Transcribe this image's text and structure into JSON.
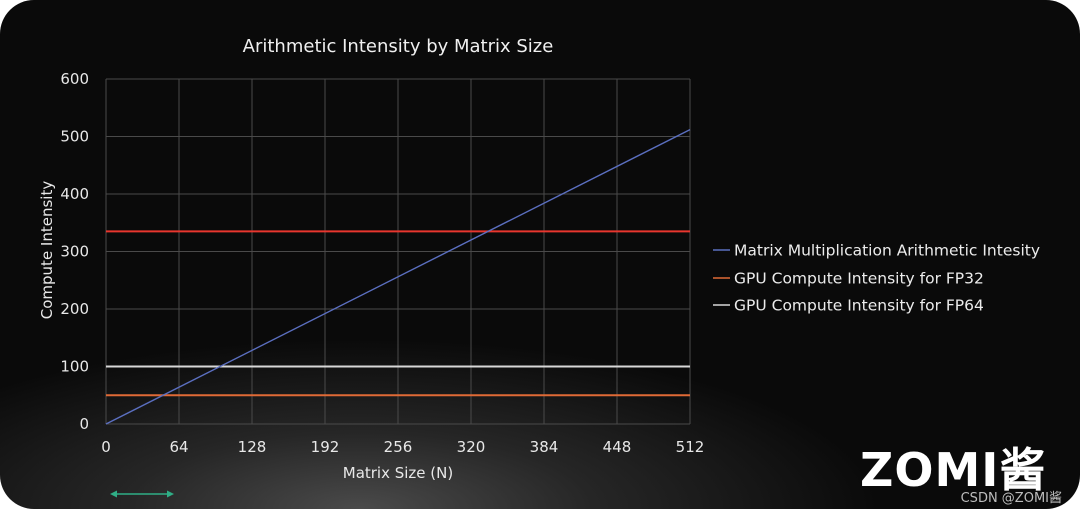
{
  "chart_data": {
    "type": "line",
    "title": "Arithmetic Intensity by Matrix Size",
    "xlabel": "Matrix Size (N)",
    "ylabel": "Compute Intensity",
    "x": [
      0,
      64,
      128,
      192,
      256,
      320,
      384,
      448,
      512
    ],
    "xlim": [
      0,
      512
    ],
    "ylim": [
      0,
      600
    ],
    "xticks": [
      "0",
      "64",
      "128",
      "192",
      "256",
      "320",
      "384",
      "448",
      "512"
    ],
    "yticks": [
      "0",
      "100",
      "200",
      "300",
      "400",
      "500",
      "600"
    ],
    "grid": true,
    "legend_position": "right",
    "series": [
      {
        "name": "Matrix Multiplication Arithmetic Intesity",
        "color": "#5b6fc0",
        "x": [
          0,
          512
        ],
        "y": [
          0,
          512
        ]
      },
      {
        "name": "GPU Compute Intensity for FP32",
        "color": "#e06a36",
        "x": [
          0,
          512
        ],
        "y": [
          50,
          50
        ]
      },
      {
        "name": "GPU Compute Intensity for FP64",
        "color": "#d8d8d8",
        "x": [
          0,
          512
        ],
        "y": [
          100,
          100
        ]
      }
    ],
    "reference_line": {
      "color": "#e8362e",
      "y": 335
    }
  },
  "logo_text": "ZOMI酱",
  "watermark": "CSDN @ZOMI酱",
  "marker_color": "#2fae86"
}
